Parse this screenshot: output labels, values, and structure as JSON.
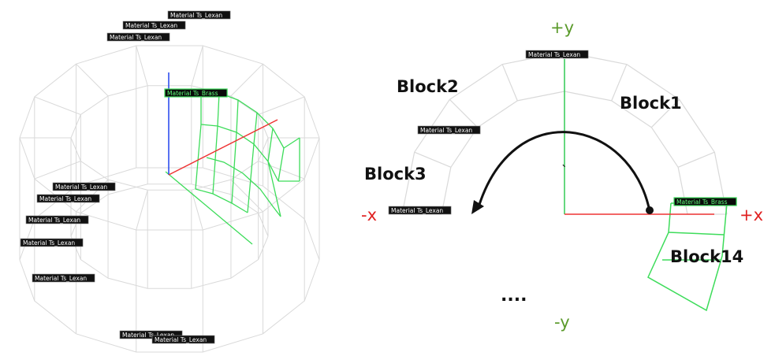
{
  "left_view": {
    "material_labels": [
      "Material Ts_Lexan",
      "Material Ts_Lexan",
      "Material Ts_Lexan",
      "Material Ts_Brass",
      "Material Ts_Lexan",
      "Material Ts_Lexan",
      "Material Ts_Lexan",
      "Material Ts_Lexan",
      "Material Ts_Lexan",
      "Material Ts_Lexan",
      "Material Ts_Lexan"
    ]
  },
  "right_view": {
    "material_labels": [
      "Material Ts_Lexan",
      "Material Ts_Lexan",
      "Material Ts_Lexan",
      "Material Ts_Brass"
    ],
    "block_labels": [
      "Block1",
      "Block2",
      "Block3",
      "Block14"
    ],
    "axis_labels": {
      "pos_y": "+y",
      "neg_y": "-y",
      "pos_x": "+x",
      "neg_x": "-x"
    },
    "ellipsis": "....",
    "tick_mark": "`"
  },
  "colors": {
    "lexan_wire": "#d9d9d9",
    "brass_wire": "#3ddc5a",
    "x_axis": "#ee3333",
    "y_axis_left": "#2244ee",
    "y_axis_right": "#33cc55",
    "pos_y_text": "#5a9a2a",
    "x_text": "#e02020"
  }
}
